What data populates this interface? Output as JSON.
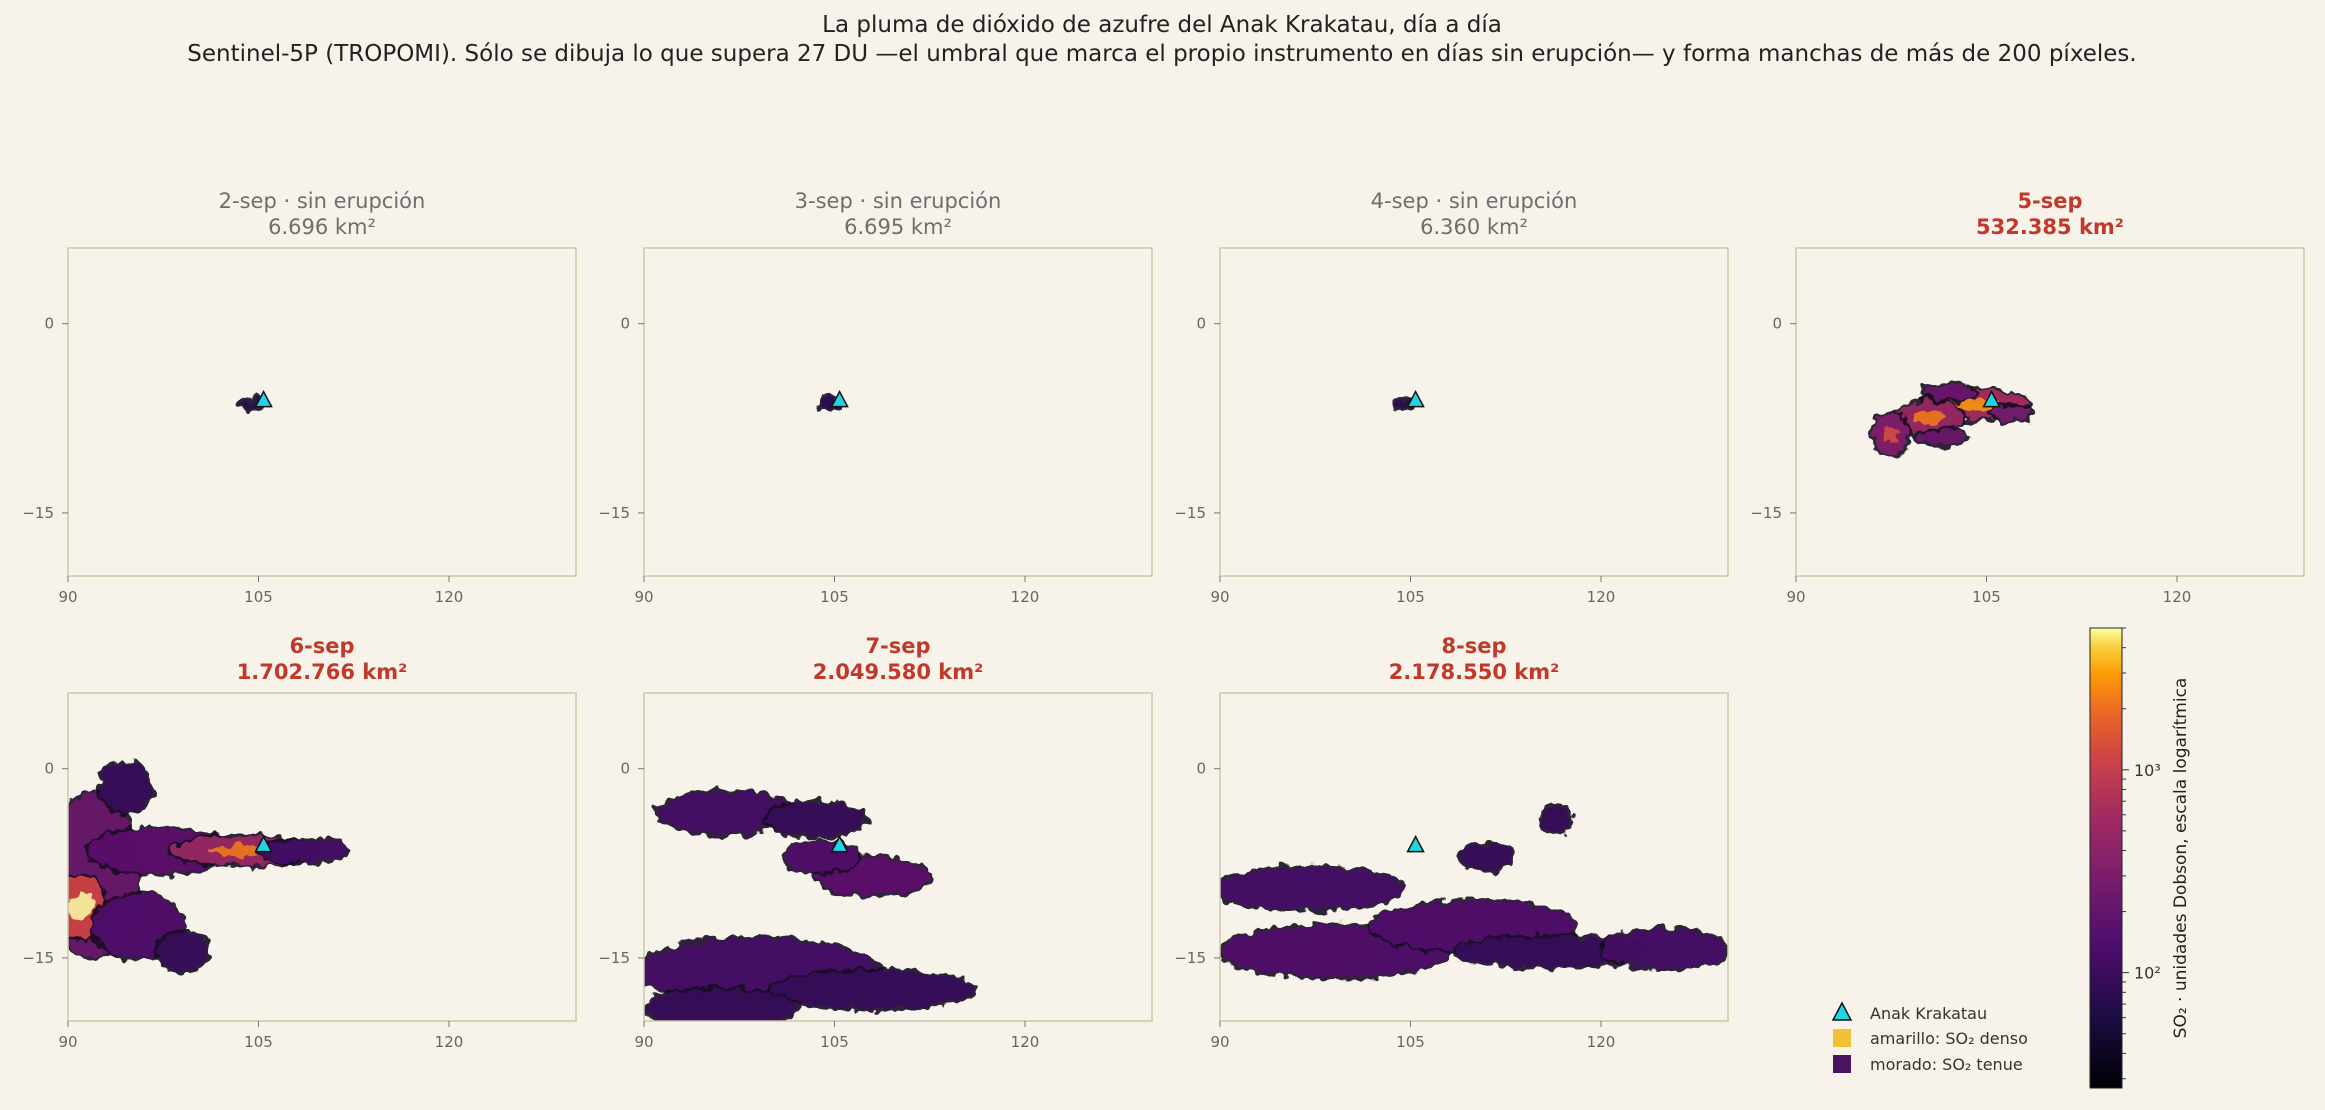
{
  "title": "La pluma de dióxido de azufre del Anak Krakatau, día a día",
  "subtitle": "Sentinel-5P (TROPOMI). Sólo se dibuja lo que supera 27 DU —el umbral que marca el propio instrumento en días sin erupción— y forma manchas de más de 200 píxeles.",
  "chart_data": {
    "type": "heatmap",
    "xlim": [
      90,
      130
    ],
    "ylim": [
      -20,
      6
    ],
    "xticks": [
      90,
      105,
      120
    ],
    "yticks": [
      0,
      -15
    ],
    "xtick_labels": [
      "90",
      "105",
      "120"
    ],
    "ytick_labels": [
      "0",
      "−15"
    ],
    "volcano": {
      "name": "Anak Krakatau",
      "lon": 105.4,
      "lat": -6.1
    },
    "panels": [
      {
        "label": "2-sep  ·  sin erupción",
        "area": "6.696 km²",
        "eruption": false,
        "blobs": [
          {
            "lon": 104.6,
            "lat": -6.3,
            "rx": 0.9,
            "ry": 0.35,
            "i": 0.25
          }
        ]
      },
      {
        "label": "3-sep  ·  sin erupción",
        "area": "6.695 km²",
        "eruption": false,
        "blobs": [
          {
            "lon": 104.6,
            "lat": -6.3,
            "rx": 0.9,
            "ry": 0.35,
            "i": 0.25
          }
        ]
      },
      {
        "label": "4-sep  ·  sin erupción",
        "area": "6.360 km²",
        "eruption": false,
        "blobs": [
          {
            "lon": 104.6,
            "lat": -6.3,
            "rx": 0.9,
            "ry": 0.35,
            "i": 0.25
          }
        ]
      },
      {
        "label": "5-sep",
        "area": "532.385 km²",
        "eruption": true,
        "blobs": [
          {
            "lon": 104.0,
            "lat": -6.4,
            "rx": 4.2,
            "ry": 1.2,
            "i": 0.75
          },
          {
            "lon": 100.5,
            "lat": -7.4,
            "rx": 2.6,
            "ry": 1.3,
            "i": 0.7
          },
          {
            "lon": 97.5,
            "lat": -8.8,
            "rx": 1.4,
            "ry": 1.6,
            "i": 0.6
          },
          {
            "lon": 107.0,
            "lat": -7.1,
            "rx": 1.6,
            "ry": 0.6,
            "i": 0.55
          },
          {
            "lon": 102.0,
            "lat": -5.4,
            "rx": 2.0,
            "ry": 0.6,
            "i": 0.5
          },
          {
            "lon": 101.5,
            "lat": -9.0,
            "rx": 1.8,
            "ry": 0.6,
            "i": 0.5
          }
        ]
      },
      {
        "label": "6-sep",
        "area": "1.702.766 km²",
        "eruption": true,
        "blobs": [
          {
            "lon": 92.0,
            "lat": -8.5,
            "rx": 3.6,
            "ry": 6.5,
            "i": 0.5
          },
          {
            "lon": 91.0,
            "lat": -11.0,
            "rx": 2.0,
            "ry": 2.5,
            "i": 0.9
          },
          {
            "lon": 97.0,
            "lat": -6.5,
            "rx": 5.5,
            "ry": 1.8,
            "i": 0.45
          },
          {
            "lon": 104.0,
            "lat": -6.5,
            "rx": 6.0,
            "ry": 1.1,
            "i": 0.7
          },
          {
            "lon": 108.5,
            "lat": -6.5,
            "rx": 3.5,
            "ry": 0.9,
            "i": 0.35
          },
          {
            "lon": 95.5,
            "lat": -12.5,
            "rx": 3.5,
            "ry": 2.5,
            "i": 0.4
          },
          {
            "lon": 94.5,
            "lat": -1.5,
            "rx": 2.0,
            "ry": 2.0,
            "i": 0.3
          },
          {
            "lon": 99.0,
            "lat": -14.5,
            "rx": 2.0,
            "ry": 1.5,
            "i": 0.3
          }
        ]
      },
      {
        "label": "7-sep",
        "area": "2.049.580 km²",
        "eruption": true,
        "blobs": [
          {
            "lon": 96.5,
            "lat": -3.5,
            "rx": 5.5,
            "ry": 1.6,
            "i": 0.35
          },
          {
            "lon": 103.5,
            "lat": -4.0,
            "rx": 4.0,
            "ry": 1.3,
            "i": 0.3
          },
          {
            "lon": 108.0,
            "lat": -8.5,
            "rx": 4.5,
            "ry": 1.5,
            "i": 0.45
          },
          {
            "lon": 104.0,
            "lat": -7.0,
            "rx": 3.0,
            "ry": 1.2,
            "i": 0.4
          },
          {
            "lon": 99.0,
            "lat": -16.0,
            "rx": 9.5,
            "ry": 2.5,
            "i": 0.35
          },
          {
            "lon": 108.0,
            "lat": -17.5,
            "rx": 8.0,
            "ry": 1.5,
            "i": 0.3
          },
          {
            "lon": 96.0,
            "lat": -19.0,
            "rx": 6.0,
            "ry": 1.5,
            "i": 0.3
          }
        ]
      },
      {
        "label": "8-sep",
        "area": "2.178.550 km²",
        "eruption": true,
        "blobs": [
          {
            "lon": 97.0,
            "lat": -9.5,
            "rx": 7.5,
            "ry": 1.6,
            "i": 0.35
          },
          {
            "lon": 99.0,
            "lat": -14.5,
            "rx": 9.0,
            "ry": 2.0,
            "i": 0.4
          },
          {
            "lon": 110.0,
            "lat": -12.5,
            "rx": 8.0,
            "ry": 2.0,
            "i": 0.4
          },
          {
            "lon": 116.0,
            "lat": -14.5,
            "rx": 7.5,
            "ry": 1.2,
            "i": 0.3
          },
          {
            "lon": 125.0,
            "lat": -14.3,
            "rx": 5.0,
            "ry": 1.5,
            "i": 0.35
          },
          {
            "lon": 111.0,
            "lat": -7.0,
            "rx": 2.0,
            "ry": 1.0,
            "i": 0.3
          },
          {
            "lon": 116.5,
            "lat": -4.0,
            "rx": 1.2,
            "ry": 1.0,
            "i": 0.3
          }
        ]
      }
    ],
    "legend": [
      {
        "kind": "triangle",
        "label": "Anak Krakatau",
        "color": "#22d3e6"
      },
      {
        "kind": "square",
        "label": "amarillo: SO₂ denso",
        "color": "#f2c037"
      },
      {
        "kind": "square",
        "label": "morado: SO₂ tenue",
        "color": "#4a1460"
      }
    ],
    "colorbar": {
      "label": "SO₂ · unidades Dobson, escala logarítmica",
      "scale": "log",
      "range": [
        27,
        5000
      ],
      "major_ticks": [
        100,
        1000
      ],
      "major_labels": [
        "10²",
        "10³"
      ]
    }
  },
  "colors": {
    "background": "#f7f3ea",
    "axes_frame": "#c8c9a8",
    "normal_title": "#6e6e6e",
    "eruption_title": "#c0392b",
    "volcano": "#22d3e6"
  }
}
